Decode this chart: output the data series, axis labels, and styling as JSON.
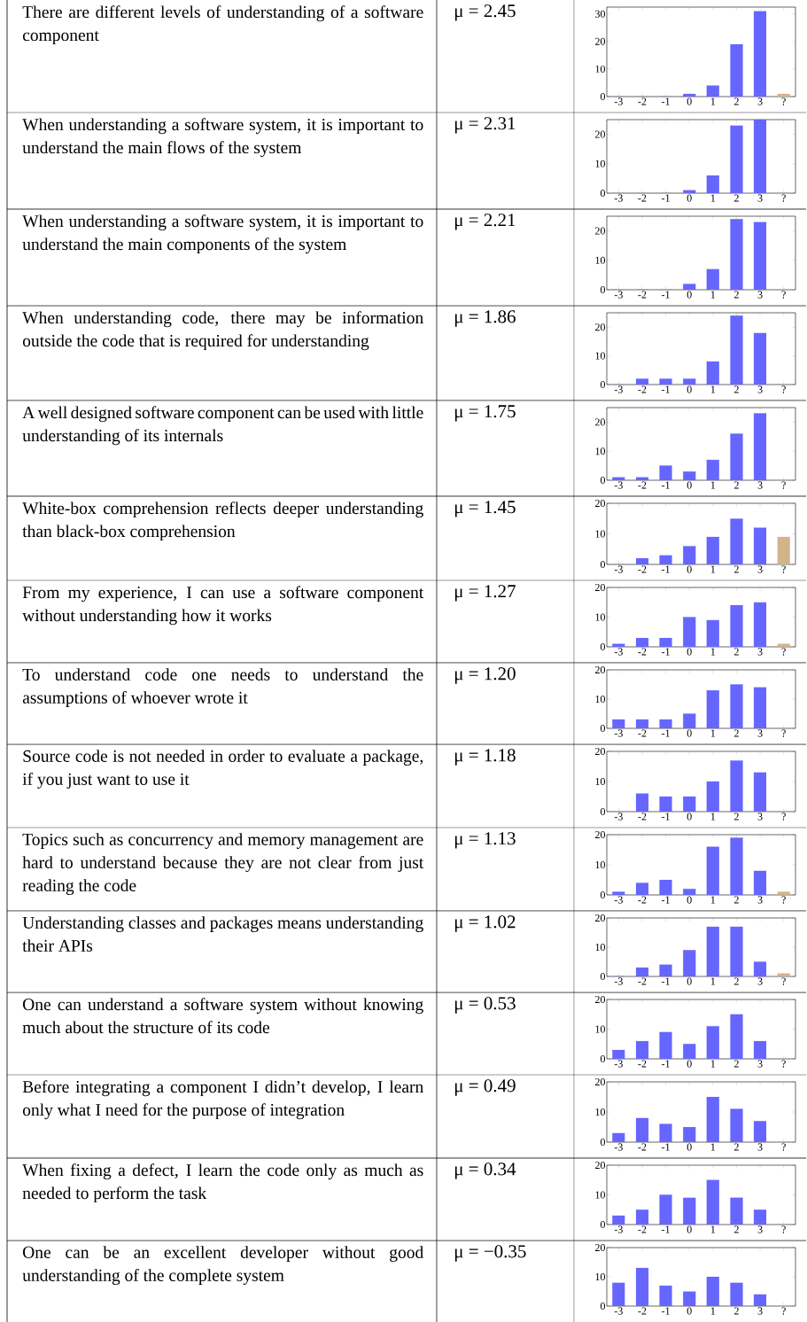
{
  "chart_data": [
    {
      "type": "bar",
      "annotations": [
        "There are different levels of understanding of a software component",
        "μ = 2.45"
      ],
      "categories": [
        "-3",
        "-2",
        "-1",
        "0",
        "1",
        "2",
        "3",
        "?"
      ],
      "values": [
        0,
        0,
        0,
        1,
        4,
        19,
        31,
        1
      ],
      "colors": [
        "#6666ff",
        "#6666ff",
        "#6666ff",
        "#6666ff",
        "#6666ff",
        "#6666ff",
        "#6666ff",
        "#d2b48c"
      ],
      "ylim": [
        0,
        32.5
      ],
      "yticks": [
        0,
        10,
        20,
        30
      ]
    },
    {
      "type": "bar",
      "annotations": [
        "When understanding a software system, it is important to understand the main flows of the system",
        "μ = 2.31"
      ],
      "categories": [
        "-3",
        "-2",
        "-1",
        "0",
        "1",
        "2",
        "3",
        "?"
      ],
      "values": [
        0,
        0,
        0,
        1,
        6,
        23,
        25,
        0
      ],
      "colors": [
        "#6666ff",
        "#6666ff",
        "#6666ff",
        "#6666ff",
        "#6666ff",
        "#6666ff",
        "#6666ff",
        "#d2b48c"
      ],
      "ylim": [
        0,
        25
      ],
      "yticks": [
        0,
        10,
        20
      ]
    },
    {
      "type": "bar",
      "annotations": [
        "When understanding a software system, it is important to understand the main components of the system",
        "μ = 2.21"
      ],
      "categories": [
        "-3",
        "-2",
        "-1",
        "0",
        "1",
        "2",
        "3",
        "?"
      ],
      "values": [
        0,
        0,
        0,
        2,
        7,
        24,
        23,
        0
      ],
      "colors": [
        "#6666ff",
        "#6666ff",
        "#6666ff",
        "#6666ff",
        "#6666ff",
        "#6666ff",
        "#6666ff",
        "#d2b48c"
      ],
      "ylim": [
        0,
        25
      ],
      "yticks": [
        0,
        10,
        20
      ]
    },
    {
      "type": "bar",
      "annotations": [
        "When understanding code, there may be information outside the code that is required for understanding",
        "μ = 1.86"
      ],
      "categories": [
        "-3",
        "-2",
        "-1",
        "0",
        "1",
        "2",
        "3",
        "?"
      ],
      "values": [
        0,
        2,
        2,
        2,
        8,
        24,
        18,
        0
      ],
      "colors": [
        "#6666ff",
        "#6666ff",
        "#6666ff",
        "#6666ff",
        "#6666ff",
        "#6666ff",
        "#6666ff",
        "#d2b48c"
      ],
      "ylim": [
        0,
        25
      ],
      "yticks": [
        0,
        10,
        20
      ]
    },
    {
      "type": "bar",
      "annotations": [
        "A well designed software component can be used with little understanding of its internals",
        "μ = 1.75"
      ],
      "categories": [
        "-3",
        "-2",
        "-1",
        "0",
        "1",
        "2",
        "3",
        "?"
      ],
      "values": [
        1,
        1,
        5,
        3,
        7,
        16,
        23,
        0
      ],
      "colors": [
        "#6666ff",
        "#6666ff",
        "#6666ff",
        "#6666ff",
        "#6666ff",
        "#6666ff",
        "#6666ff",
        "#d2b48c"
      ],
      "ylim": [
        0,
        25
      ],
      "yticks": [
        0,
        10,
        20
      ]
    },
    {
      "type": "bar",
      "annotations": [
        "White-box comprehension reflects deeper understanding than black-box comprehension",
        "μ = 1.45"
      ],
      "categories": [
        "-3",
        "-2",
        "-1",
        "0",
        "1",
        "2",
        "3",
        "?"
      ],
      "values": [
        0,
        2,
        3,
        6,
        9,
        15,
        12,
        9
      ],
      "colors": [
        "#6666ff",
        "#6666ff",
        "#6666ff",
        "#6666ff",
        "#6666ff",
        "#6666ff",
        "#6666ff",
        "#d2b48c"
      ],
      "ylim": [
        0,
        20
      ],
      "yticks": [
        0,
        10,
        20
      ]
    },
    {
      "type": "bar",
      "annotations": [
        "From my experience, I can use a software component without understanding how it works",
        "μ = 1.27"
      ],
      "categories": [
        "-3",
        "-2",
        "-1",
        "0",
        "1",
        "2",
        "3",
        "?"
      ],
      "values": [
        1,
        3,
        3,
        10,
        9,
        14,
        15,
        1
      ],
      "colors": [
        "#6666ff",
        "#6666ff",
        "#6666ff",
        "#6666ff",
        "#6666ff",
        "#6666ff",
        "#6666ff",
        "#d2b48c"
      ],
      "ylim": [
        0,
        20
      ],
      "yticks": [
        0,
        10,
        20
      ]
    },
    {
      "type": "bar",
      "annotations": [
        "To understand code one needs to understand the assumptions of whoever wrote it",
        "μ = 1.20"
      ],
      "categories": [
        "-3",
        "-2",
        "-1",
        "0",
        "1",
        "2",
        "3",
        "?"
      ],
      "values": [
        3,
        3,
        3,
        5,
        13,
        15,
        14,
        0
      ],
      "colors": [
        "#6666ff",
        "#6666ff",
        "#6666ff",
        "#6666ff",
        "#6666ff",
        "#6666ff",
        "#6666ff",
        "#d2b48c"
      ],
      "ylim": [
        0,
        20
      ],
      "yticks": [
        0,
        10,
        20
      ]
    },
    {
      "type": "bar",
      "annotations": [
        "Source code is not needed in order to evaluate a package, if you just want to use it",
        "μ = 1.18"
      ],
      "categories": [
        "-3",
        "-2",
        "-1",
        "0",
        "1",
        "2",
        "3",
        "?"
      ],
      "values": [
        0,
        6,
        5,
        5,
        10,
        17,
        13,
        0
      ],
      "colors": [
        "#6666ff",
        "#6666ff",
        "#6666ff",
        "#6666ff",
        "#6666ff",
        "#6666ff",
        "#6666ff",
        "#d2b48c"
      ],
      "ylim": [
        0,
        20
      ],
      "yticks": [
        0,
        10,
        20
      ]
    },
    {
      "type": "bar",
      "annotations": [
        "Topics such as concurrency and memory management are hard to understand because they are not clear from just reading the code",
        "μ = 1.13"
      ],
      "categories": [
        "-3",
        "-2",
        "-1",
        "0",
        "1",
        "2",
        "3",
        "?"
      ],
      "values": [
        1,
        4,
        5,
        2,
        16,
        19,
        8,
        1
      ],
      "colors": [
        "#6666ff",
        "#6666ff",
        "#6666ff",
        "#6666ff",
        "#6666ff",
        "#6666ff",
        "#6666ff",
        "#d2b48c"
      ],
      "ylim": [
        0,
        20
      ],
      "yticks": [
        0,
        10,
        20
      ]
    },
    {
      "type": "bar",
      "annotations": [
        "Understanding classes and packages means understanding their APIs",
        "μ = 1.02"
      ],
      "categories": [
        "-3",
        "-2",
        "-1",
        "0",
        "1",
        "2",
        "3",
        "?"
      ],
      "values": [
        0,
        3,
        4,
        9,
        17,
        17,
        5,
        1
      ],
      "colors": [
        "#6666ff",
        "#6666ff",
        "#6666ff",
        "#6666ff",
        "#6666ff",
        "#6666ff",
        "#6666ff",
        "#d2b48c"
      ],
      "ylim": [
        0,
        20
      ],
      "yticks": [
        0,
        10,
        20
      ]
    },
    {
      "type": "bar",
      "annotations": [
        "One can understand a software system without knowing much about the structure of its code",
        "μ = 0.53"
      ],
      "categories": [
        "-3",
        "-2",
        "-1",
        "0",
        "1",
        "2",
        "3",
        "?"
      ],
      "values": [
        3,
        6,
        9,
        5,
        11,
        15,
        6,
        0
      ],
      "colors": [
        "#6666ff",
        "#6666ff",
        "#6666ff",
        "#6666ff",
        "#6666ff",
        "#6666ff",
        "#6666ff",
        "#d2b48c"
      ],
      "ylim": [
        0,
        20
      ],
      "yticks": [
        0,
        10,
        20
      ]
    },
    {
      "type": "bar",
      "annotations": [
        "Before integrating a component I didn’t develop, I learn only what I need for the purpose of integration",
        "μ = 0.49"
      ],
      "categories": [
        "-3",
        "-2",
        "-1",
        "0",
        "1",
        "2",
        "3",
        "?"
      ],
      "values": [
        3,
        8,
        6,
        5,
        15,
        11,
        7,
        0
      ],
      "colors": [
        "#6666ff",
        "#6666ff",
        "#6666ff",
        "#6666ff",
        "#6666ff",
        "#6666ff",
        "#6666ff",
        "#d2b48c"
      ],
      "ylim": [
        0,
        20
      ],
      "yticks": [
        0,
        10,
        20
      ]
    },
    {
      "type": "bar",
      "annotations": [
        "When fixing a defect, I learn the code only as much as needed to perform the task",
        "μ = 0.34"
      ],
      "categories": [
        "-3",
        "-2",
        "-1",
        "0",
        "1",
        "2",
        "3",
        "?"
      ],
      "values": [
        3,
        5,
        10,
        9,
        15,
        9,
        5,
        0
      ],
      "colors": [
        "#6666ff",
        "#6666ff",
        "#6666ff",
        "#6666ff",
        "#6666ff",
        "#6666ff",
        "#6666ff",
        "#d2b48c"
      ],
      "ylim": [
        0,
        20
      ],
      "yticks": [
        0,
        10,
        20
      ]
    },
    {
      "type": "bar",
      "annotations": [
        "One can be an excellent developer without good understanding of the complete system",
        "μ = −0.35"
      ],
      "categories": [
        "-3",
        "-2",
        "-1",
        "0",
        "1",
        "2",
        "3",
        "?"
      ],
      "values": [
        8,
        13,
        7,
        5,
        10,
        8,
        4,
        0
      ],
      "colors": [
        "#6666ff",
        "#6666ff",
        "#6666ff",
        "#6666ff",
        "#6666ff",
        "#6666ff",
        "#6666ff",
        "#d2b48c"
      ],
      "ylim": [
        0,
        20
      ],
      "yticks": [
        0,
        10,
        20
      ]
    }
  ]
}
